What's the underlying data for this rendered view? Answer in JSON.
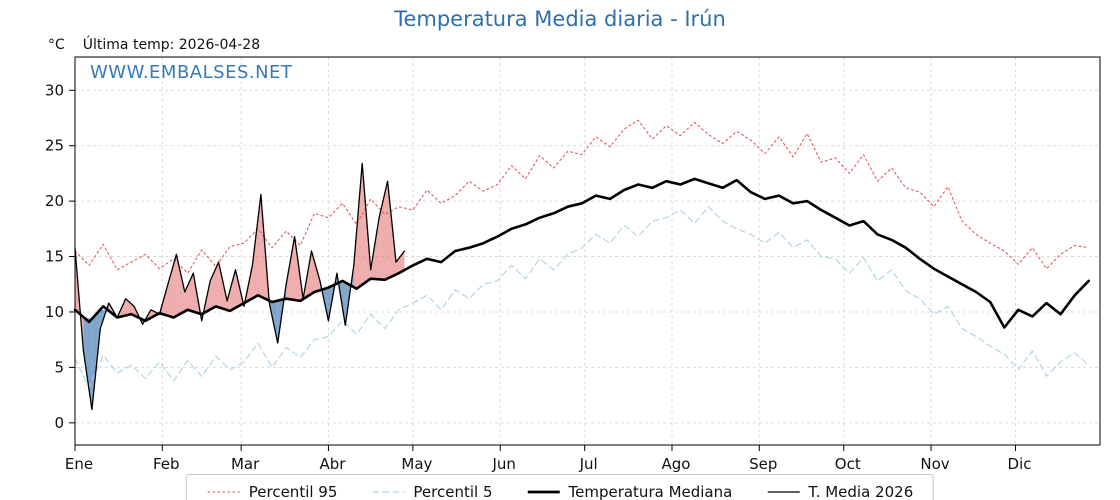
{
  "header": {
    "title": "Temperatura Media diaria - Irún",
    "unit_label": "°C",
    "last_temp_label": "Última temp: 2026-04-28"
  },
  "watermark": "WWW.EMBALSES.NET",
  "colors": {
    "title": "#2f6fad",
    "watermark": "#3a79b8",
    "p95": "#e05c5c",
    "p5": "#a9d3e6",
    "median": "#000000",
    "t2026": "#000000",
    "fill_above": "rgba(228,106,106,0.55)",
    "fill_below": "rgba(62,118,176,0.65)",
    "grid": "#dcdcdc",
    "frame": "#000000"
  },
  "chart_data": {
    "type": "line",
    "title": "Temperatura Media diaria - Irún",
    "ylabel": "°C",
    "ylim": [
      -2,
      33
    ],
    "yticks": [
      0,
      5,
      10,
      15,
      20,
      25,
      30
    ],
    "xlim_days": [
      1,
      365
    ],
    "month_ticks": [
      {
        "label": "Ene",
        "day": 1
      },
      {
        "label": "Feb",
        "day": 32
      },
      {
        "label": "Mar",
        "day": 60
      },
      {
        "label": "Abr",
        "day": 91
      },
      {
        "label": "May",
        "day": 121
      },
      {
        "label": "Jun",
        "day": 152
      },
      {
        "label": "Jul",
        "day": 182
      },
      {
        "label": "Ago",
        "day": 213
      },
      {
        "label": "Sep",
        "day": 244
      },
      {
        "label": "Oct",
        "day": 274
      },
      {
        "label": "Nov",
        "day": 305
      },
      {
        "label": "Dic",
        "day": 335
      }
    ],
    "grid": true,
    "legend_position": "bottom",
    "x_days": [
      1,
      6,
      11,
      16,
      21,
      26,
      31,
      36,
      41,
      46,
      51,
      56,
      61,
      66,
      71,
      76,
      81,
      86,
      91,
      96,
      101,
      106,
      111,
      116,
      121,
      126,
      131,
      136,
      141,
      146,
      151,
      156,
      161,
      166,
      171,
      176,
      181,
      186,
      191,
      196,
      201,
      206,
      211,
      216,
      221,
      226,
      231,
      236,
      241,
      246,
      251,
      256,
      261,
      266,
      271,
      276,
      281,
      286,
      291,
      296,
      301,
      306,
      311,
      316,
      321,
      326,
      331,
      336,
      341,
      346,
      351,
      356,
      361
    ],
    "series": [
      {
        "name": "Percentil 95",
        "color": "#e05c5c",
        "style": "dotted",
        "width": 1.1,
        "values": [
          15.5,
          14.2,
          16.1,
          13.8,
          14.5,
          15.2,
          13.9,
          14.8,
          13.5,
          15.6,
          14.1,
          15.9,
          16.2,
          17.5,
          15.8,
          17.3,
          16.0,
          18.9,
          18.5,
          19.8,
          17.9,
          20.2,
          18.8,
          19.5,
          19.2,
          21.0,
          19.8,
          20.5,
          21.8,
          20.9,
          21.5,
          23.2,
          22.0,
          24.1,
          23.0,
          24.5,
          24.2,
          25.8,
          24.9,
          26.5,
          27.3,
          25.6,
          26.8,
          25.9,
          27.1,
          26.0,
          25.2,
          26.3,
          25.5,
          24.3,
          25.8,
          24.0,
          26.1,
          23.5,
          23.9,
          22.5,
          24.2,
          21.8,
          23.0,
          21.2,
          20.8,
          19.5,
          21.3,
          18.2,
          17.0,
          16.2,
          15.5,
          14.3,
          15.8,
          13.9,
          15.2,
          16.0,
          15.8
        ]
      },
      {
        "name": "Percentil 5",
        "color": "#a9d3e6",
        "style": "dashed",
        "width": 1.1,
        "values": [
          5.8,
          3.2,
          6.1,
          4.5,
          5.2,
          4.0,
          5.5,
          3.8,
          5.6,
          4.2,
          6.0,
          4.8,
          5.5,
          7.2,
          5.0,
          6.8,
          5.9,
          7.5,
          7.8,
          9.2,
          8.0,
          9.8,
          8.5,
          10.2,
          10.8,
          11.5,
          10.2,
          12.0,
          11.2,
          12.5,
          12.8,
          14.2,
          13.0,
          14.8,
          13.8,
          15.2,
          15.8,
          17.0,
          16.2,
          17.8,
          16.8,
          18.2,
          18.5,
          19.2,
          18.0,
          19.5,
          18.2,
          17.5,
          17.0,
          16.2,
          17.2,
          15.8,
          16.5,
          15.0,
          14.8,
          13.5,
          14.9,
          12.8,
          13.8,
          11.9,
          11.2,
          9.8,
          10.5,
          8.5,
          7.8,
          6.9,
          6.2,
          4.8,
          6.5,
          4.2,
          5.5,
          6.3,
          5.2
        ]
      },
      {
        "name": "Temperatura Mediana",
        "color": "#000000",
        "style": "solid",
        "width": 2.6,
        "values": [
          10.2,
          9.1,
          10.5,
          9.5,
          9.8,
          9.2,
          9.9,
          9.5,
          10.2,
          9.8,
          10.5,
          10.1,
          10.8,
          11.5,
          10.9,
          11.2,
          11.0,
          11.8,
          12.2,
          12.8,
          12.1,
          13.0,
          12.9,
          13.5,
          14.2,
          14.8,
          14.5,
          15.5,
          15.8,
          16.2,
          16.8,
          17.5,
          17.9,
          18.5,
          18.9,
          19.5,
          19.8,
          20.5,
          20.2,
          21.0,
          21.5,
          21.2,
          21.8,
          21.5,
          22.0,
          21.6,
          21.2,
          21.9,
          20.8,
          20.2,
          20.5,
          19.8,
          20.0,
          19.2,
          18.5,
          17.8,
          18.2,
          17.0,
          16.5,
          15.8,
          14.8,
          13.9,
          13.2,
          12.5,
          11.8,
          10.9,
          8.6,
          10.2,
          9.6,
          10.8,
          9.8,
          11.5,
          12.8
        ]
      },
      {
        "name": "T. Media 2026",
        "color": "#000000",
        "style": "solid",
        "width": 1.3,
        "x": [
          1,
          4,
          7,
          10,
          13,
          16,
          19,
          22,
          25,
          28,
          31,
          34,
          37,
          40,
          43,
          46,
          49,
          52,
          55,
          58,
          61,
          64,
          67,
          70,
          73,
          76,
          79,
          82,
          85,
          88,
          91,
          94,
          97,
          100,
          103,
          106,
          109,
          112,
          115,
          118
        ],
        "values": [
          15.8,
          6.5,
          1.2,
          8.5,
          10.8,
          9.5,
          11.2,
          10.5,
          8.9,
          10.2,
          9.8,
          12.5,
          15.2,
          11.8,
          13.5,
          9.2,
          12.8,
          14.5,
          11.0,
          13.8,
          10.5,
          14.2,
          20.6,
          10.8,
          7.2,
          12.5,
          16.8,
          11.2,
          15.5,
          12.8,
          9.2,
          13.5,
          8.8,
          14.2,
          23.4,
          13.8,
          18.5,
          21.8,
          14.5,
          15.5
        ]
      }
    ],
    "fill_between": {
      "series_a": "T. Media 2026",
      "series_b": "Temperatura Mediana",
      "above_color": "rgba(228,106,106,0.55)",
      "below_color": "rgba(62,118,176,0.65)"
    }
  },
  "legend": {
    "items": [
      {
        "label": "Percentil 95"
      },
      {
        "label": "Percentil 5"
      },
      {
        "label": "Temperatura Mediana"
      },
      {
        "label": "T. Media 2026"
      }
    ]
  }
}
